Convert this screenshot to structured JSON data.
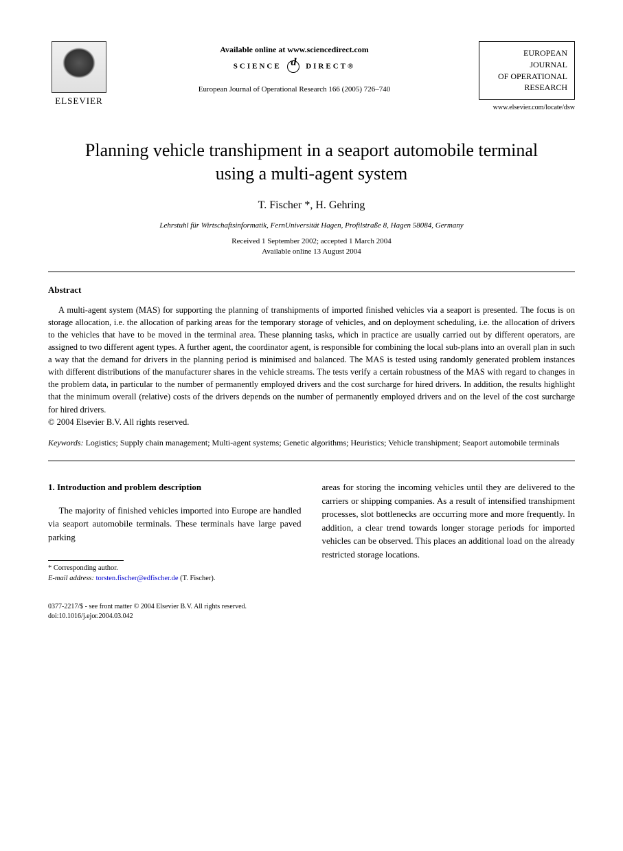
{
  "header": {
    "publisher_name": "ELSEVIER",
    "available_online": "Available online at www.sciencedirect.com",
    "science_direct_left": "SCIENCE",
    "science_direct_right": "DIRECT®",
    "journal_ref": "European Journal of Operational Research 166 (2005) 726–740",
    "journal_box_line1": "EUROPEAN",
    "journal_box_line2": "JOURNAL",
    "journal_box_line3": "OF OPERATIONAL",
    "journal_box_line4": "RESEARCH",
    "journal_url": "www.elsevier.com/locate/dsw"
  },
  "title": "Planning vehicle transhipment in a seaport automobile terminal using a multi-agent system",
  "authors": "T. Fischer *, H. Gehring",
  "affiliation": "Lehrstuhl für Wirtschaftsinformatik, FernUniversität Hagen, Profilstraße 8, Hagen 58084, Germany",
  "dates_line1": "Received 1 September 2002; accepted 1 March 2004",
  "dates_line2": "Available online 13 August 2004",
  "abstract": {
    "heading": "Abstract",
    "text": "A multi-agent system (MAS) for supporting the planning of transhipments of imported finished vehicles via a seaport is presented. The focus is on storage allocation, i.e. the allocation of parking areas for the temporary storage of vehicles, and on deployment scheduling, i.e. the allocation of drivers to the vehicles that have to be moved in the terminal area. These planning tasks, which in practice are usually carried out by different operators, are assigned to two different agent types. A further agent, the coordinator agent, is responsible for combining the local sub-plans into an overall plan in such a way that the demand for drivers in the planning period is minimised and balanced. The MAS is tested using randomly generated problem instances with different distributions of the manufacturer shares in the vehicle streams. The tests verify a certain robustness of the MAS with regard to changes in the problem data, in particular to the number of permanently employed drivers and the cost surcharge for hired drivers. In addition, the results highlight that the minimum overall (relative) costs of the drivers depends on the number of permanently employed drivers and on the level of the cost surcharge for hired drivers.",
    "copyright": "© 2004 Elsevier B.V. All rights reserved."
  },
  "keywords": {
    "label": "Keywords:",
    "text": " Logistics; Supply chain management; Multi-agent systems; Genetic algorithms; Heuristics; Vehicle transhipment; Seaport automobile terminals"
  },
  "section1": {
    "heading": "1. Introduction and problem description",
    "col1": "The majority of finished vehicles imported into Europe are handled via seaport automobile terminals. These terminals have large paved parking",
    "col2": "areas for storing the incoming vehicles until they are delivered to the carriers or shipping companies. As a result of intensified transhipment processes, slot bottlenecks are occurring more and more frequently. In addition, a clear trend towards longer storage periods for imported vehicles can be observed. This places an additional load on the already restricted storage locations."
  },
  "footnote": {
    "corr": "* Corresponding author.",
    "email_label": "E-mail address:",
    "email": "torsten.fischer@edfischer.de",
    "email_suffix": " (T. Fischer)."
  },
  "footer": {
    "line1": "0377-2217/$ - see front matter © 2004 Elsevier B.V. All rights reserved.",
    "line2": "doi:10.1016/j.ejor.2004.03.042"
  }
}
